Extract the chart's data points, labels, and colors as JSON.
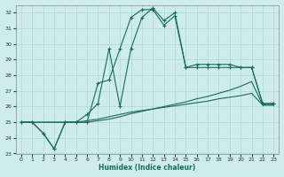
{
  "xlabel": "Humidex (Indice chaleur)",
  "background_color": "#cdecea",
  "grid_color": "#aad8d4",
  "line_color": "#1a6b5a",
  "xlim": [
    -0.5,
    23.5
  ],
  "ylim": [
    23,
    32.5
  ],
  "xticks": [
    0,
    1,
    2,
    3,
    4,
    5,
    6,
    7,
    8,
    9,
    10,
    11,
    12,
    13,
    14,
    15,
    16,
    17,
    18,
    19,
    20,
    21,
    22,
    23
  ],
  "yticks": [
    23,
    24,
    25,
    26,
    27,
    28,
    29,
    30,
    31,
    32
  ],
  "series1_x": [
    0,
    1,
    2,
    3,
    4,
    5,
    6,
    7,
    8,
    9,
    10,
    11,
    12,
    13,
    14,
    15,
    16,
    17,
    18,
    19,
    20,
    21,
    22,
    23
  ],
  "series1_y": [
    25.0,
    25.0,
    24.3,
    23.3,
    25.0,
    25.0,
    25.0,
    27.5,
    27.7,
    29.7,
    31.7,
    32.2,
    32.2,
    31.2,
    31.8,
    28.5,
    28.5,
    28.5,
    28.5,
    28.5,
    28.5,
    28.5,
    26.2,
    26.2
  ],
  "series2_x": [
    0,
    1,
    2,
    3,
    4,
    5,
    6,
    7,
    8,
    9,
    10,
    11,
    12,
    13,
    14,
    15,
    16,
    17,
    18,
    19,
    20,
    21,
    22,
    23
  ],
  "series2_y": [
    25.0,
    25.0,
    24.3,
    23.3,
    25.0,
    25.0,
    25.5,
    26.2,
    29.7,
    26.0,
    29.7,
    31.7,
    32.3,
    31.5,
    32.0,
    28.5,
    28.7,
    28.7,
    28.7,
    28.7,
    28.5,
    28.5,
    26.2,
    26.2
  ],
  "series3_x": [
    0,
    1,
    2,
    3,
    4,
    5,
    6,
    7,
    8,
    9,
    10,
    11,
    12,
    13,
    14,
    15,
    16,
    17,
    18,
    19,
    20,
    21,
    22,
    23
  ],
  "series3_y": [
    25.0,
    25.0,
    25.0,
    25.0,
    25.0,
    25.0,
    25.1,
    25.2,
    25.35,
    25.5,
    25.65,
    25.75,
    25.85,
    25.95,
    26.05,
    26.15,
    26.25,
    26.35,
    26.5,
    26.6,
    26.7,
    26.85,
    26.1,
    26.1
  ],
  "series4_x": [
    0,
    1,
    2,
    3,
    4,
    5,
    6,
    7,
    8,
    9,
    10,
    11,
    12,
    13,
    14,
    15,
    16,
    17,
    18,
    19,
    20,
    21,
    22,
    23
  ],
  "series4_y": [
    25.0,
    25.0,
    25.0,
    25.0,
    25.0,
    25.0,
    25.0,
    25.1,
    25.2,
    25.35,
    25.55,
    25.7,
    25.85,
    26.0,
    26.15,
    26.3,
    26.5,
    26.65,
    26.85,
    27.05,
    27.3,
    27.6,
    26.1,
    26.1
  ]
}
